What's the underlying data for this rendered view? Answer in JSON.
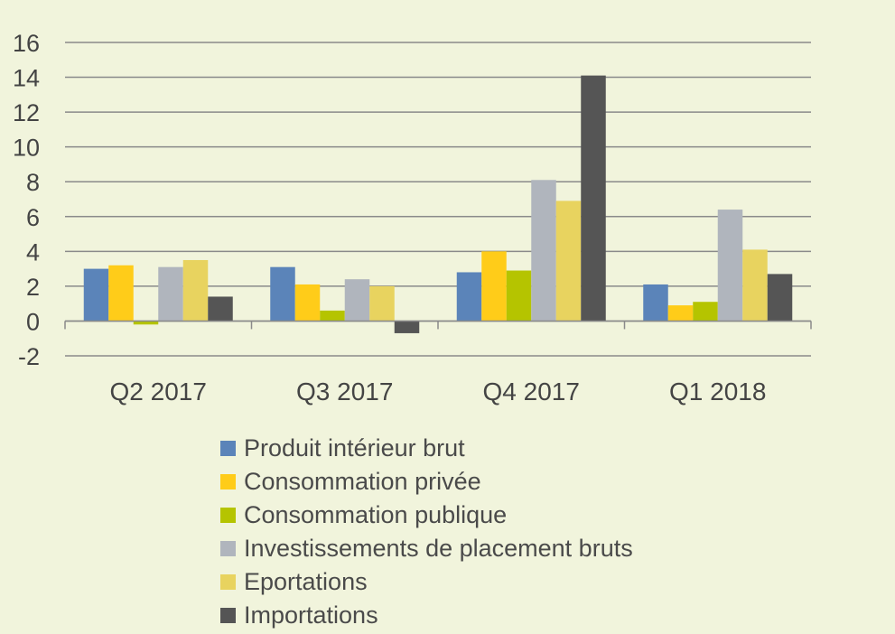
{
  "chart_data": {
    "type": "bar",
    "categories": [
      "Q2 2017",
      "Q3 2017",
      "Q4 2017",
      "Q1 2018"
    ],
    "series": [
      {
        "name": "Produit intérieur brut",
        "color": "#5b84b9",
        "values": [
          3.0,
          3.1,
          2.8,
          2.1
        ]
      },
      {
        "name": "Consommation privée",
        "color": "#ffcc19",
        "values": [
          3.2,
          2.1,
          4.0,
          0.9
        ]
      },
      {
        "name": "Consommation publique",
        "color": "#b5c400",
        "values": [
          -0.2,
          0.6,
          2.9,
          1.1
        ]
      },
      {
        "name": "Investissements de placement bruts",
        "color": "#b0b5bd",
        "values": [
          3.1,
          2.4,
          8.1,
          6.4
        ]
      },
      {
        "name": "Eportations",
        "color": "#e8d35f",
        "values": [
          3.5,
          2.0,
          6.9,
          4.1
        ]
      },
      {
        "name": "Importations",
        "color": "#555555",
        "values": [
          1.4,
          -0.7,
          14.1,
          2.7
        ]
      }
    ],
    "yticks": [
      -2,
      0,
      2,
      4,
      6,
      8,
      10,
      12,
      14,
      16
    ],
    "ylim": [
      -2,
      16
    ],
    "grid": true,
    "legend_position": "bottom",
    "title": "",
    "xlabel": "",
    "ylabel": ""
  }
}
